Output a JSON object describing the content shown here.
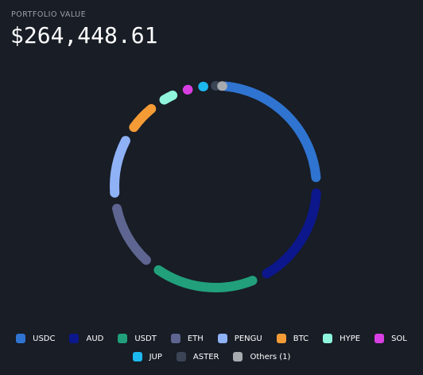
{
  "header": {
    "label": "PORTFOLIO VALUE",
    "value": "$264,448.61"
  },
  "chart_data": {
    "type": "donut",
    "categories": [
      "USDC",
      "AUD",
      "USDT",
      "ETH",
      "PENGU",
      "BTC",
      "HYPE",
      "SOL",
      "JUP",
      "ASTER",
      "Others (1)"
    ],
    "values": [
      24.5,
      18,
      18,
      12,
      11,
      6.5,
      4,
      2.5,
      2,
      1,
      0.5
    ],
    "colors": [
      "#2f74d0",
      "#0c178c",
      "#21a07b",
      "#5d6590",
      "#8fb1f6",
      "#f59b36",
      "#8ff5dd",
      "#d83fe2",
      "#1bb9ef",
      "#3a4455",
      "#a7aaaf"
    ],
    "legend": "bottom"
  }
}
